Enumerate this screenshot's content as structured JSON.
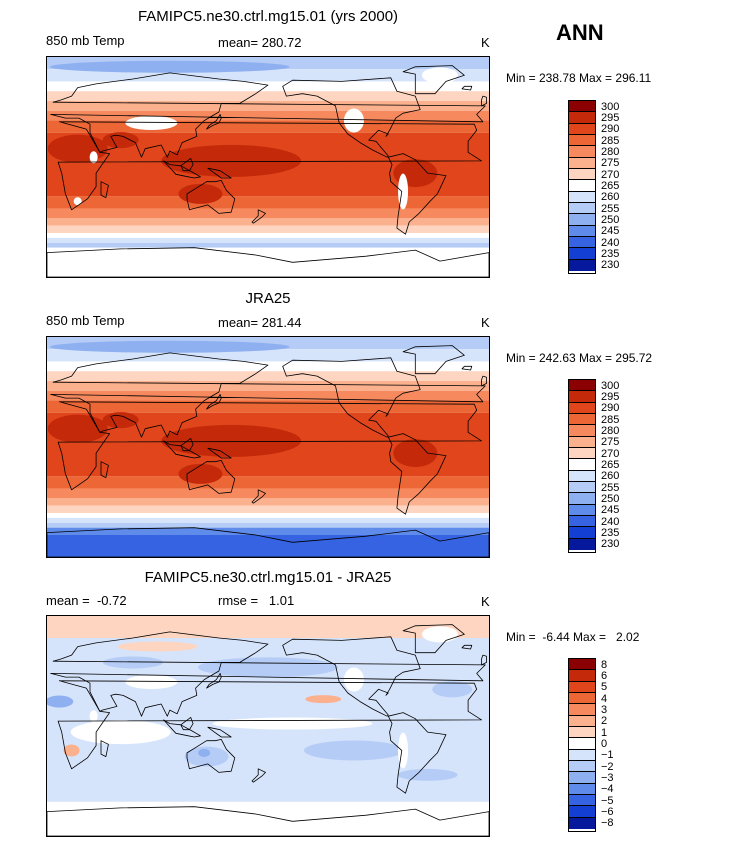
{
  "season_label": "ANN",
  "panels": [
    {
      "title": "FAMIPC5.ne30.ctrl.mg15.01 (yrs 2000)",
      "left_label": "850 mb Temp",
      "center_label": "mean= 280.72",
      "units": "K",
      "minmax": "Min = 238.78 Max = 296.11",
      "kind": "temp_model",
      "colorbar": [
        "300",
        "295",
        "290",
        "285",
        "280",
        "275",
        "270",
        "265",
        "260",
        "255",
        "250",
        "245",
        "240",
        "235",
        "230"
      ]
    },
    {
      "title": "JRA25",
      "left_label": "850 mb Temp",
      "center_label": "mean= 281.44",
      "units": "K",
      "minmax": "Min = 242.63 Max = 295.72",
      "kind": "temp_obs",
      "colorbar": [
        "300",
        "295",
        "290",
        "285",
        "280",
        "275",
        "270",
        "265",
        "260",
        "255",
        "250",
        "245",
        "240",
        "235",
        "230"
      ]
    },
    {
      "title": "FAMIPC5.ne30.ctrl.mg15.01 - JRA25",
      "left_label": "mean =  -0.72",
      "center_label": "rmse =   1.01",
      "units": "K",
      "minmax": "Min =  -6.44 Max =   2.02",
      "kind": "diff",
      "colorbar": [
        "8",
        "6",
        "5",
        "4",
        "3",
        "2",
        "1",
        "0",
        "−1",
        "−2",
        "−3",
        "−4",
        "−5",
        "−6",
        "−8"
      ]
    }
  ],
  "colors": {
    "temp_scale": [
      "#8b0000",
      "#c42a0a",
      "#e0451c",
      "#ec6636",
      "#f68a5e",
      "#fbb08e",
      "#fdd5c1",
      "#ffffff",
      "#d6e4fb",
      "#b5cdf6",
      "#8fb0f0",
      "#5f8cea",
      "#3563e2",
      "#1340d2",
      "#06199c"
    ],
    "diff_scale": [
      "#8b0000",
      "#c42a0a",
      "#e0451c",
      "#ec6636",
      "#f68a5e",
      "#fbb08e",
      "#fdd5c1",
      "#ffffff",
      "#d6e4fb",
      "#b5cdf6",
      "#8fb0f0",
      "#5f8cea",
      "#3563e2",
      "#1340d2",
      "#06199c"
    ],
    "land_outline": "#000000"
  },
  "chart_data": [
    {
      "type": "heatmap",
      "title": "FAMIPC5.ne30.ctrl.mg15.01 (yrs 2000)",
      "variable": "850 mb Temp",
      "units": "K",
      "mean": 280.72,
      "min": 238.78,
      "max": 296.11,
      "contour_levels": [
        230,
        235,
        240,
        245,
        250,
        255,
        260,
        265,
        270,
        275,
        280,
        285,
        290,
        295,
        300
      ],
      "xlim": [
        0,
        360
      ],
      "ylim": [
        -90,
        90
      ]
    },
    {
      "type": "heatmap",
      "title": "JRA25",
      "variable": "850 mb Temp",
      "units": "K",
      "mean": 281.44,
      "min": 242.63,
      "max": 295.72,
      "contour_levels": [
        230,
        235,
        240,
        245,
        250,
        255,
        260,
        265,
        270,
        275,
        280,
        285,
        290,
        295,
        300
      ],
      "xlim": [
        0,
        360
      ],
      "ylim": [
        -90,
        90
      ]
    },
    {
      "type": "heatmap",
      "title": "FAMIPC5.ne30.ctrl.mg15.01 - JRA25",
      "units": "K",
      "mean": -0.72,
      "rmse": 1.01,
      "min": -6.44,
      "max": 2.02,
      "contour_levels": [
        -8,
        -6,
        -5,
        -4,
        -3,
        -2,
        -1,
        0,
        1,
        2,
        3,
        4,
        5,
        6,
        8
      ],
      "xlim": [
        0,
        360
      ],
      "ylim": [
        -90,
        90
      ]
    }
  ]
}
